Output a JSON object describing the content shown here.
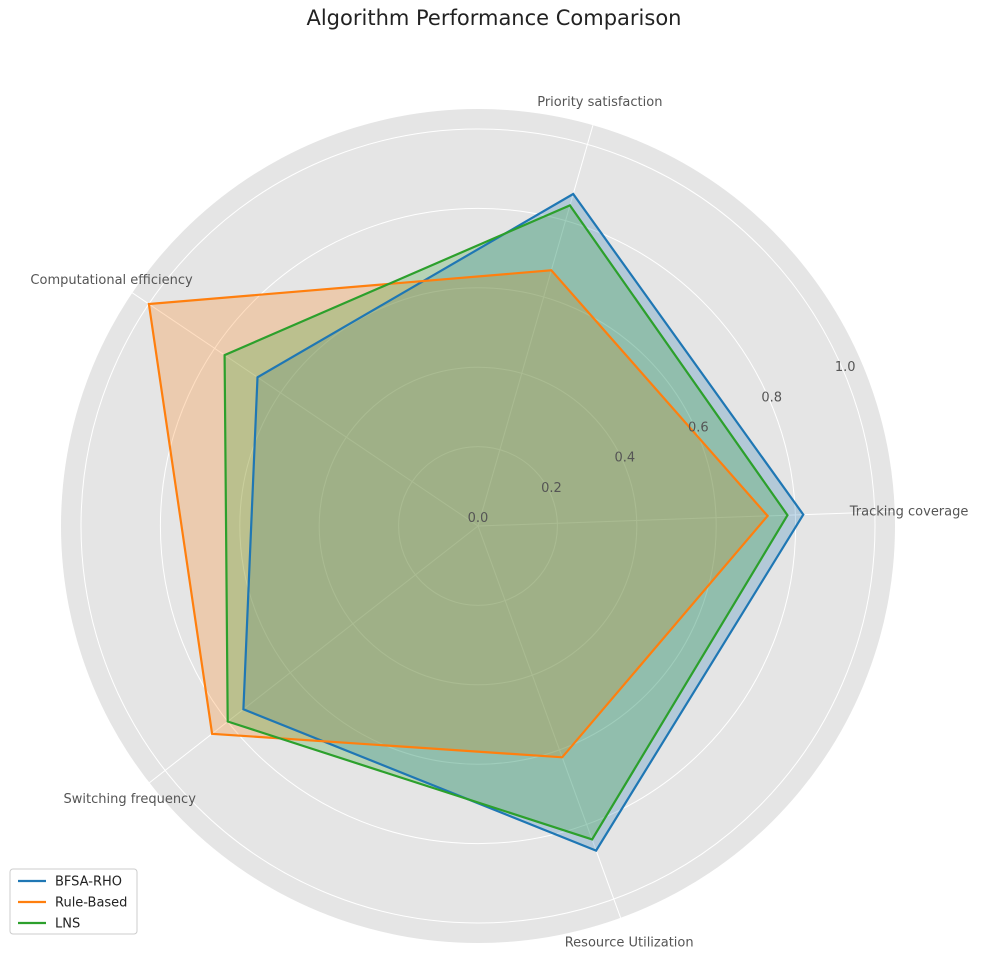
{
  "chart_data": {
    "type": "radar",
    "title": "Algorithm Performance Comparison",
    "axes": [
      "Tracking coverage",
      "Priority satisfaction",
      "Computational efficiency",
      "Switching frequency",
      "Resource Utilization"
    ],
    "rlim": [
      0,
      1.0
    ],
    "rticks": [
      "0.0",
      "0.2",
      "0.4",
      "0.6",
      "0.8",
      "1.0"
    ],
    "grid": true,
    "legend_position": "lower-left",
    "series": [
      {
        "name": "BFSA-RHO",
        "color": "#1f77b4",
        "values": [
          0.82,
          0.87,
          0.67,
          0.75,
          0.87
        ]
      },
      {
        "name": "Rule-Based",
        "color": "#ff7f0e",
        "values": [
          0.73,
          0.67,
          1.0,
          0.85,
          0.62
        ]
      },
      {
        "name": "LNS",
        "color": "#2ca02c",
        "values": [
          0.78,
          0.84,
          0.77,
          0.8,
          0.84
        ]
      }
    ],
    "polar_background": "#e5e5e5"
  }
}
